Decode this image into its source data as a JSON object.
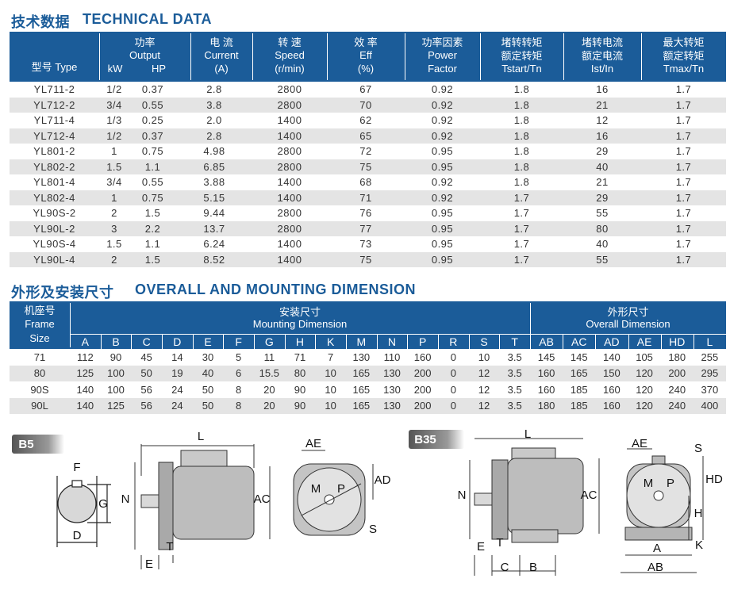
{
  "section1": {
    "title_cn": "技术数据",
    "title_en": "TECHNICAL DATA",
    "headers": [
      [
        "型号 Type"
      ],
      [
        "功率",
        "Output",
        "kW",
        "HP"
      ],
      [
        "电 流",
        "Current",
        "(A)"
      ],
      [
        "转 速",
        "Speed",
        "(r/min)"
      ],
      [
        "效 率",
        "Eff",
        "(%)"
      ],
      [
        "功率因素",
        "Power",
        "Factor"
      ],
      [
        "堵转转矩",
        "额定转矩",
        "Tstart/Tn"
      ],
      [
        "堵转电流",
        "额定电流",
        "Ist/In"
      ],
      [
        "最大转矩",
        "额定转矩",
        "Tmax/Tn"
      ]
    ],
    "rows": [
      [
        "YL711-2",
        "1/2",
        "0.37",
        "2.8",
        "2800",
        "67",
        "0.92",
        "1.8",
        "16",
        "1.7"
      ],
      [
        "YL712-2",
        "3/4",
        "0.55",
        "3.8",
        "2800",
        "70",
        "0.92",
        "1.8",
        "21",
        "1.7"
      ],
      [
        "YL711-4",
        "1/3",
        "0.25",
        "2.0",
        "1400",
        "62",
        "0.92",
        "1.8",
        "12",
        "1.7"
      ],
      [
        "YL712-4",
        "1/2",
        "0.37",
        "2.8",
        "1400",
        "65",
        "0.92",
        "1.8",
        "16",
        "1.7"
      ],
      [
        "YL801-2",
        "1",
        "0.75",
        "4.98",
        "2800",
        "72",
        "0.95",
        "1.8",
        "29",
        "1.7"
      ],
      [
        "YL802-2",
        "1.5",
        "1.1",
        "6.85",
        "2800",
        "75",
        "0.95",
        "1.8",
        "40",
        "1.7"
      ],
      [
        "YL801-4",
        "3/4",
        "0.55",
        "3.88",
        "1400",
        "68",
        "0.92",
        "1.8",
        "21",
        "1.7"
      ],
      [
        "YL802-4",
        "1",
        "0.75",
        "5.15",
        "1400",
        "71",
        "0.92",
        "1.7",
        "29",
        "1.7"
      ],
      [
        "YL90S-2",
        "2",
        "1.5",
        "9.44",
        "2800",
        "76",
        "0.95",
        "1.7",
        "55",
        "1.7"
      ],
      [
        "YL90L-2",
        "3",
        "2.2",
        "13.7",
        "2800",
        "77",
        "0.95",
        "1.7",
        "80",
        "1.7"
      ],
      [
        "YL90S-4",
        "1.5",
        "1.1",
        "6.24",
        "1400",
        "73",
        "0.95",
        "1.7",
        "40",
        "1.7"
      ],
      [
        "YL90L-4",
        "2",
        "1.5",
        "8.52",
        "1400",
        "75",
        "0.95",
        "1.7",
        "55",
        "1.7"
      ]
    ]
  },
  "section2": {
    "title_cn": "外形及安装尺寸",
    "title_en": "OVERALL AND MOUNTING DIMENSION",
    "frame_header": [
      "机座号",
      "Frame",
      "Size"
    ],
    "mounting_header": [
      "安装尺寸",
      "Mounting Dimension"
    ],
    "overall_header": [
      "外形尺寸",
      "Overall Dimension"
    ],
    "columns": [
      "A",
      "B",
      "C",
      "D",
      "E",
      "F",
      "G",
      "H",
      "K",
      "M",
      "N",
      "P",
      "R",
      "S",
      "T",
      "AB",
      "AC",
      "AD",
      "AE",
      "HD",
      "L"
    ],
    "rows": [
      [
        "71",
        "112",
        "90",
        "45",
        "14",
        "30",
        "5",
        "11",
        "71",
        "7",
        "130",
        "110",
        "160",
        "0",
        "10",
        "3.5",
        "145",
        "145",
        "140",
        "105",
        "180",
        "255"
      ],
      [
        "80",
        "125",
        "100",
        "50",
        "19",
        "40",
        "6",
        "15.5",
        "80",
        "10",
        "165",
        "130",
        "200",
        "0",
        "12",
        "3.5",
        "160",
        "165",
        "150",
        "120",
        "200",
        "295"
      ],
      [
        "90S",
        "140",
        "100",
        "56",
        "24",
        "50",
        "8",
        "20",
        "90",
        "10",
        "165",
        "130",
        "200",
        "0",
        "12",
        "3.5",
        "160",
        "185",
        "160",
        "120",
        "240",
        "370"
      ],
      [
        "90L",
        "140",
        "125",
        "56",
        "24",
        "50",
        "8",
        "20",
        "90",
        "10",
        "165",
        "130",
        "200",
        "0",
        "12",
        "3.5",
        "180",
        "185",
        "160",
        "120",
        "240",
        "400"
      ]
    ]
  },
  "diagrams": {
    "b5": {
      "badge": "B5",
      "labels": [
        "F",
        "G",
        "D",
        "N",
        "L",
        "AC",
        "E",
        "T",
        "AE",
        "AD",
        "S",
        "M",
        "P"
      ]
    },
    "b35": {
      "badge": "B35",
      "labels": [
        "L",
        "N",
        "AC",
        "E",
        "T",
        "C",
        "B",
        "AE",
        "S",
        "HD",
        "H",
        "A",
        "K",
        "AB",
        "M",
        "P"
      ]
    }
  }
}
